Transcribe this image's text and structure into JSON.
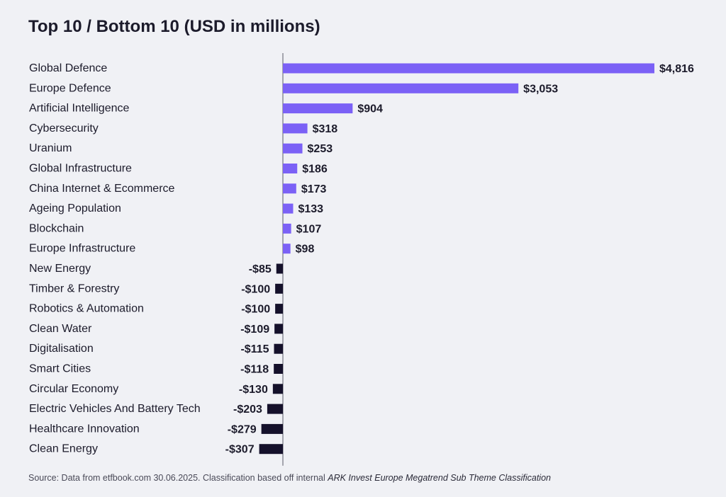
{
  "chart_data": {
    "type": "bar",
    "orientation": "horizontal",
    "title": "Top 10 / Bottom 10 (USD in millions)",
    "xlabel": "",
    "ylabel": "",
    "categories": [
      "Global Defence",
      "Europe Defence",
      "Artificial Intelligence",
      "Cybersecurity",
      "Uranium",
      "Global Infrastructure",
      "China Internet & Ecommerce",
      "Ageing Population",
      "Blockchain",
      "Europe Infrastructure",
      "New Energy",
      "Timber & Forestry",
      "Robotics & Automation",
      "Clean Water",
      "Digitalisation",
      "Smart Cities",
      "Circular Economy",
      "Electric Vehicles And Battery Tech",
      "Healthcare Innovation",
      "Clean Energy"
    ],
    "values": [
      4816,
      3053,
      904,
      318,
      253,
      186,
      173,
      133,
      107,
      98,
      -85,
      -100,
      -100,
      -109,
      -115,
      -118,
      -130,
      -203,
      -279,
      -307
    ],
    "value_labels": [
      "$4,816",
      "$3,053",
      "$904",
      "$318",
      "$253",
      "$186",
      "$173",
      "$133",
      "$107",
      "$98",
      "-$85",
      "-$100",
      "-$100",
      "-$109",
      "-$115",
      "-$118",
      "-$130",
      "-$203",
      "-$279",
      "-$307"
    ],
    "xlim": [
      -307,
      4816
    ],
    "grid": false,
    "legend": "none"
  },
  "colors": {
    "positive": "#7b61f6",
    "negative": "#15112b",
    "axis": "#5a5a66",
    "text": "#1c1b2b",
    "background": "#f0f1f5"
  },
  "footer": {
    "source_prefix": "Source: Data from etfbook.com 30.06.2025. Classification based off internal ",
    "source_emphasis": "ARK Invest Europe Megatrend Sub Theme Classification"
  }
}
